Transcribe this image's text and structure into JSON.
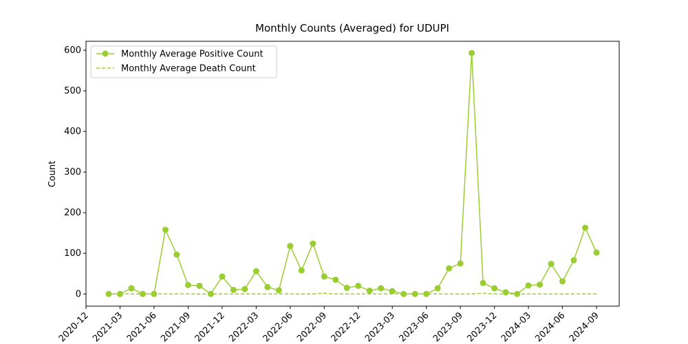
{
  "chart_data": {
    "type": "line",
    "title": "Monthly Counts (Averaged) for UDUPI",
    "y_label": "Count",
    "x": [
      "2021-02",
      "2021-03",
      "2021-04",
      "2021-05",
      "2021-06",
      "2021-07",
      "2021-08",
      "2021-09",
      "2021-10",
      "2021-11",
      "2021-12",
      "2022-01",
      "2022-02",
      "2022-03",
      "2022-04",
      "2022-05",
      "2022-06",
      "2022-07",
      "2022-08",
      "2022-09",
      "2022-10",
      "2022-11",
      "2022-12",
      "2023-01",
      "2023-02",
      "2023-03",
      "2023-04",
      "2023-05",
      "2023-06",
      "2023-07",
      "2023-08",
      "2023-09",
      "2023-10",
      "2023-11",
      "2023-12",
      "2024-01",
      "2024-02",
      "2024-03",
      "2024-04",
      "2024-05",
      "2024-06",
      "2024-07",
      "2024-08",
      "2024-09"
    ],
    "series": [
      {
        "name": "Monthly Average Positive Count",
        "color": "#9acd32",
        "style": "solid",
        "marker": true,
        "values": [
          0,
          0,
          14,
          0,
          0,
          158,
          97,
          22,
          20,
          0,
          43,
          10,
          12,
          56,
          17,
          9,
          118,
          58,
          124,
          43,
          35,
          15,
          20,
          8,
          14,
          7,
          0,
          0,
          0,
          14,
          63,
          75,
          593,
          27,
          14,
          4,
          0,
          21,
          23,
          74,
          31,
          83,
          163,
          102
        ]
      },
      {
        "name": "Monthly Average Death Count",
        "color": "#9acd32",
        "style": "dashed",
        "marker": false,
        "values": [
          0,
          0,
          0,
          0,
          0,
          0,
          0,
          0,
          0,
          0,
          0,
          0,
          0,
          0,
          0,
          0,
          0,
          0,
          0,
          2,
          0,
          0,
          0,
          0,
          0,
          0,
          0,
          0,
          0,
          0,
          0,
          0,
          0,
          2,
          0,
          0,
          0,
          0,
          0,
          0,
          0,
          0,
          0,
          0
        ]
      }
    ],
    "xlim": [
      "2020-12",
      "2024-11"
    ],
    "xticks": [
      "2020-12",
      "2021-03",
      "2021-06",
      "2021-09",
      "2021-12",
      "2022-03",
      "2022-06",
      "2022-09",
      "2022-12",
      "2023-03",
      "2023-06",
      "2023-09",
      "2023-12",
      "2024-03",
      "2024-06",
      "2024-09"
    ],
    "ylim": [
      -30,
      622
    ],
    "yticks": [
      0,
      100,
      200,
      300,
      400,
      500,
      600
    ],
    "legend": "upper left"
  }
}
